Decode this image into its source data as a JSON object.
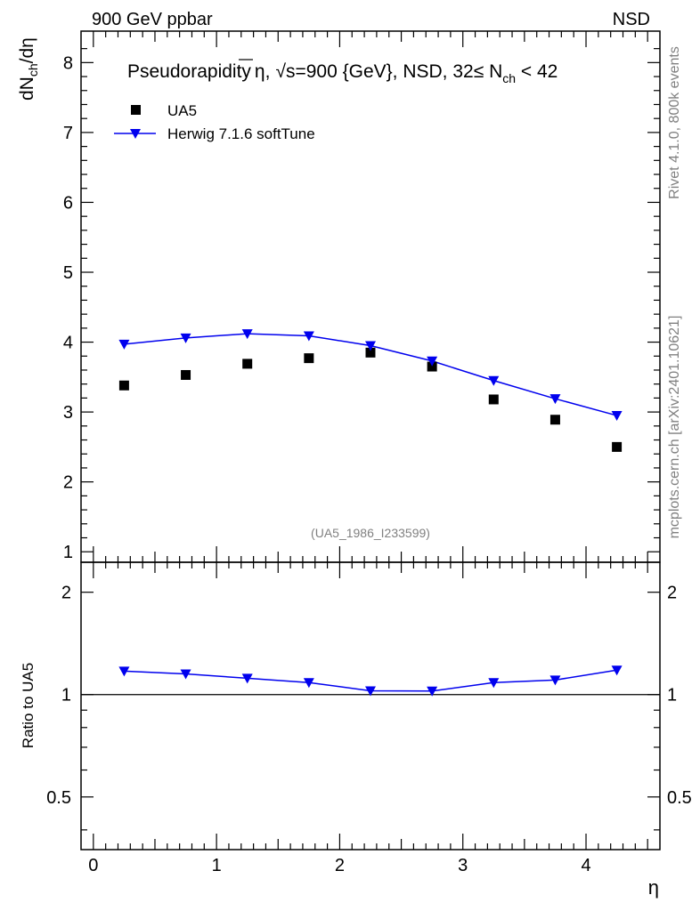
{
  "header": {
    "left": "900 GeV ppbar",
    "right": "NSD"
  },
  "side_labels": {
    "rivet": "Rivet 4.1.0,  800k events",
    "mcplots": "mcplots.cern.ch [arXiv:2401.10621]"
  },
  "colors": {
    "model": "#0000ee",
    "data": "#000000",
    "side_text": "#808080"
  },
  "chart_data": [
    {
      "type": "scatter",
      "panel": "main",
      "title": "Pseudorapidity η, √s=900 {GeV}, NSD, 32≤ N_ch < 42",
      "title_parts": {
        "pre": "Pseudorapidity",
        "eta": "η",
        "comma": ",",
        "sqrt": "√",
        "s_energy": "s=900 {GeV}, NSD, 32",
        "leq": "≤",
        "N": " N",
        "sub": "ch",
        "post": " < 42"
      },
      "ylabel": "dN_ch/dη",
      "ylabel_parts": {
        "d": "dN",
        "sub": "ch",
        "rest": "/dη"
      },
      "xlim": [
        -0.1,
        4.6
      ],
      "ylim": [
        0.85,
        8.45
      ],
      "yticks": [
        "1",
        "2",
        "3",
        "4",
        "5",
        "6",
        "7",
        "8"
      ],
      "ytick_values": [
        1,
        2,
        3,
        4,
        5,
        6,
        7,
        8
      ],
      "x": [
        0.25,
        0.75,
        1.25,
        1.75,
        2.25,
        2.75,
        3.25,
        3.75,
        4.25
      ],
      "series": [
        {
          "name": "UA5",
          "marker": "square",
          "values": [
            3.38,
            3.53,
            3.69,
            3.77,
            3.85,
            3.65,
            3.18,
            2.89,
            2.5
          ]
        },
        {
          "name": "Herwig 7.1.6 softTune",
          "marker": "triangle-down",
          "values": [
            3.97,
            4.06,
            4.12,
            4.09,
            3.95,
            3.73,
            3.45,
            3.19,
            2.95
          ]
        }
      ],
      "legend": [
        "UA5",
        "Herwig 7.1.6 softTune"
      ],
      "legend_position": "top-left",
      "annotation": "(UA5_1986_I233599)"
    },
    {
      "type": "line",
      "panel": "ratio",
      "ylabel": "Ratio to UA5",
      "xlabel": "η",
      "ylim": [
        0.35,
        2.45
      ],
      "yticks": [
        "0.5",
        "1",
        "2"
      ],
      "ytick_values": [
        0.5,
        1,
        2
      ],
      "xticks": [
        "0",
        "1",
        "2",
        "3",
        "4"
      ],
      "xtick_values": [
        0,
        1,
        2,
        3,
        4
      ],
      "x": [
        0.25,
        0.75,
        1.25,
        1.75,
        2.25,
        2.75,
        3.25,
        3.75,
        4.25
      ],
      "series": [
        {
          "name": "Herwig 7.1.6 softTune",
          "values": [
            1.172,
            1.15,
            1.117,
            1.085,
            1.026,
            1.024,
            1.085,
            1.104,
            1.18
          ]
        }
      ],
      "reference_line": 1
    }
  ]
}
